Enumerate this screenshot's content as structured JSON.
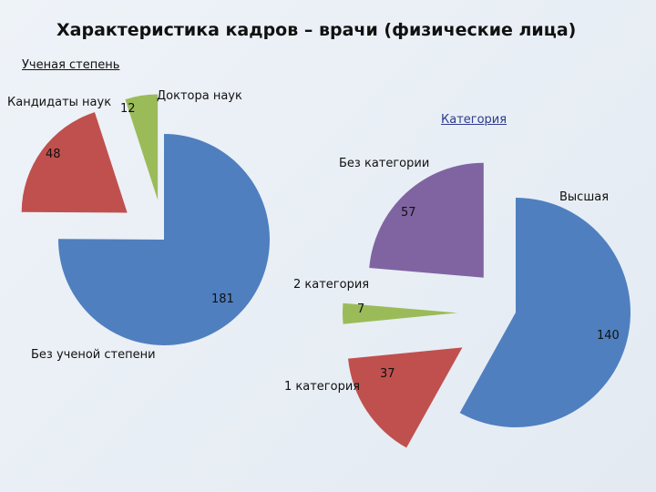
{
  "title": "Характеристика кадров – врачи (физические лица)",
  "chart_data": [
    {
      "type": "pie",
      "title": "Ученая степень",
      "series": [
        {
          "label": "Без ученой степени",
          "value": 181,
          "color": "#4f7fbf"
        },
        {
          "label": "Кандидаты наук",
          "value": 48,
          "color": "#c0504d"
        },
        {
          "label": "Доктора наук",
          "value": 12,
          "color": "#9bbb59"
        }
      ]
    },
    {
      "type": "pie",
      "title": "Категория",
      "series": [
        {
          "label": "Высшая",
          "value": 140,
          "color": "#4f7fbf"
        },
        {
          "label": "1 категория",
          "value": 37,
          "color": "#c0504d"
        },
        {
          "label": "2 категория",
          "value": 7,
          "color": "#9bbb59"
        },
        {
          "label": "Без категории",
          "value": 57,
          "color": "#8064a2"
        }
      ]
    }
  ]
}
